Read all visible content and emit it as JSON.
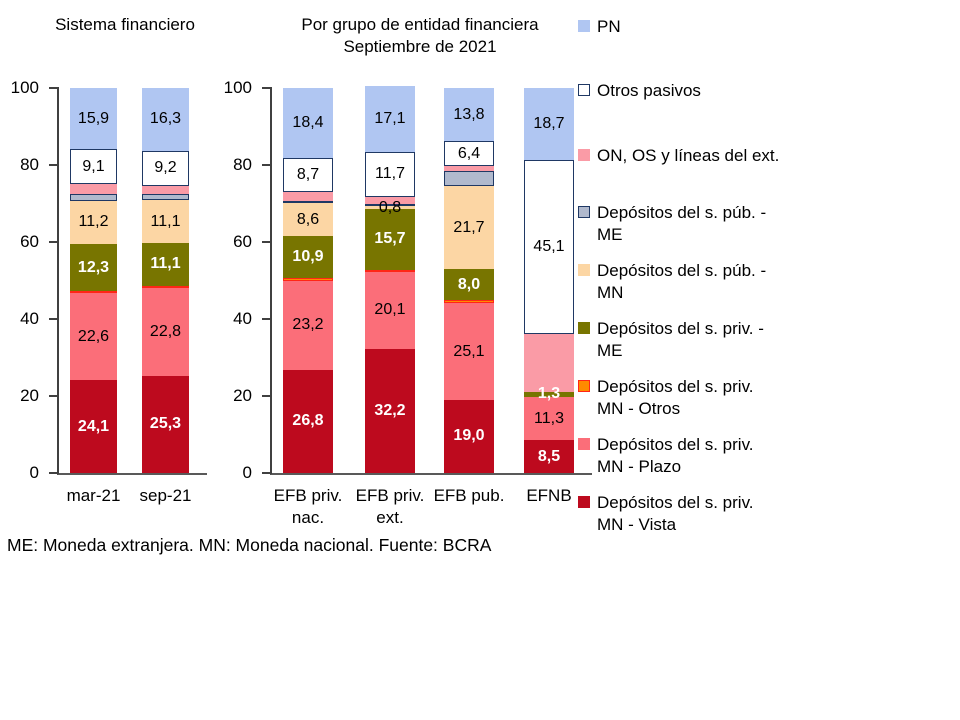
{
  "footer_note": "ME: Moneda extranjera. MN: Moneda nacional. Fuente: BCRA",
  "legend": {
    "items": [
      {
        "key": "pn",
        "lines": [
          "PN"
        ],
        "color": "#B0C6F2",
        "border": ""
      },
      {
        "key": "otros_pasivos",
        "lines": [
          "Otros pasivos"
        ],
        "color": "#FFFFFF",
        "border": "#1F3864"
      },
      {
        "key": "on_os",
        "lines": [
          "ON, OS y líneas del ext."
        ],
        "color": "#FA9BA6",
        "border": ""
      },
      {
        "key": "me_pub",
        "lines": [
          "Depósitos del s. púb. -",
          "ME"
        ],
        "color": "#B0B9CD",
        "border": "#1F3864"
      },
      {
        "key": "mn_pub",
        "lines": [
          "Depósitos del s. púb. -",
          "MN"
        ],
        "color": "#FCD6A4",
        "border": ""
      },
      {
        "key": "me_priv",
        "lines": [
          "Depósitos del s. priv. -",
          "ME"
        ],
        "color": "#787500",
        "border": ""
      },
      {
        "key": "otros",
        "lines": [
          "Depósitos del s. priv.",
          "MN - Otros"
        ],
        "color": "#FF8A00",
        "border": "#FF2616"
      },
      {
        "key": "plazo",
        "lines": [
          "Depósitos del s. priv.",
          "MN - Plazo"
        ],
        "color": "#FB6E79",
        "border": ""
      },
      {
        "key": "vista",
        "lines": [
          "Depósitos del s. priv.",
          "MN - Vista"
        ],
        "color": "#BD0A1E",
        "border": ""
      }
    ]
  },
  "chart_data": [
    {
      "type": "bar",
      "stacked": true,
      "title_lines": [
        "Sistema financiero"
      ],
      "categories": [
        "mar-21",
        "sep-21"
      ],
      "category_label_lines": [
        [
          "mar-21"
        ],
        [
          "sep-21"
        ]
      ],
      "ylim": [
        0,
        100
      ],
      "yticks": [
        0,
        20,
        40,
        60,
        80,
        100
      ],
      "grid": false,
      "legend_position": "right-of-second-chart",
      "series": [
        {
          "key": "vista",
          "name": "Depósitos del s. priv. MN - Vista",
          "color": "#BD0A1E",
          "text_color": "#FFFFFF",
          "bold": true,
          "border": "",
          "values": [
            24.1,
            25.3
          ],
          "labels": [
            "24,1",
            "25,3"
          ]
        },
        {
          "key": "plazo",
          "name": "Depósitos del s. priv. MN - Plazo",
          "color": "#FB6E79",
          "text_color": "#000000",
          "bold": false,
          "border": "",
          "values": [
            22.6,
            22.8
          ],
          "labels": [
            "22,6",
            "22,8"
          ]
        },
        {
          "key": "otros",
          "name": "Depósitos del s. priv. MN - Otros",
          "color": "#FF8A00",
          "text_color": "#000000",
          "bold": false,
          "border": "#FF2616",
          "values": [
            0.5,
            0.5
          ],
          "labels": [
            null,
            null
          ]
        },
        {
          "key": "me_priv",
          "name": "Depósitos del s. priv. - ME",
          "color": "#787500",
          "text_color": "#FFFFFF",
          "bold": true,
          "border": "",
          "values": [
            12.3,
            11.1
          ],
          "labels": [
            "12,3",
            "11,1"
          ]
        },
        {
          "key": "mn_pub",
          "name": "Depósitos del s. púb. - MN",
          "color": "#FCD6A4",
          "text_color": "#000000",
          "bold": false,
          "border": "",
          "values": [
            11.2,
            11.1
          ],
          "labels": [
            "11,2",
            "11,1"
          ]
        },
        {
          "key": "me_pub",
          "name": "Depósitos del s. púb. - ME",
          "color": "#B0B9CD",
          "text_color": "#000000",
          "bold": false,
          "border": "#1F3864",
          "values": [
            1.8,
            1.7
          ],
          "labels": [
            null,
            null
          ]
        },
        {
          "key": "on_os",
          "name": "ON, OS y líneas del ext.",
          "color": "#FA9BA6",
          "text_color": "#000000",
          "bold": false,
          "border": "",
          "values": [
            2.5,
            2.0
          ],
          "labels": [
            null,
            null
          ]
        },
        {
          "key": "otros_pasivos",
          "name": "Otros pasivos",
          "color": "#FFFFFF",
          "text_color": "#000000",
          "bold": false,
          "border": "#1F3864",
          "values": [
            9.1,
            9.2
          ],
          "labels": [
            "9,1",
            "9,2"
          ]
        },
        {
          "key": "pn",
          "name": "PN",
          "color": "#B0C6F2",
          "text_color": "#000000",
          "bold": false,
          "border": "",
          "values": [
            15.9,
            16.3
          ],
          "labels": [
            "15,9",
            "16,3"
          ]
        }
      ]
    },
    {
      "type": "bar",
      "stacked": true,
      "title_lines": [
        "Por grupo de entidad financiera",
        "Septiembre de 2021"
      ],
      "categories": [
        "EFB priv. nac.",
        "EFB priv. ext.",
        "EFB pub.",
        "EFNB"
      ],
      "category_label_lines": [
        [
          "EFB priv.",
          "nac."
        ],
        [
          "EFB priv.",
          "ext."
        ],
        [
          "EFB pub."
        ],
        [
          "EFNB"
        ]
      ],
      "ylim": [
        0,
        100
      ],
      "yticks": [
        0,
        20,
        40,
        60,
        80,
        100
      ],
      "grid": false,
      "series": [
        {
          "key": "vista",
          "name": "Depósitos del s. priv. MN - Vista",
          "color": "#BD0A1E",
          "text_color": "#FFFFFF",
          "bold": true,
          "border": "",
          "values": [
            26.8,
            32.2,
            19.0,
            8.5
          ],
          "labels": [
            "26,8",
            "32,2",
            "19,0",
            "8,5"
          ]
        },
        {
          "key": "plazo",
          "name": "Depósitos del s. priv. MN - Plazo",
          "color": "#FB6E79",
          "text_color": "#000000",
          "bold": false,
          "border": "",
          "values": [
            23.2,
            20.1,
            25.1,
            11.3
          ],
          "labels": [
            "23,2",
            "20,1",
            "25,1",
            "11,3"
          ]
        },
        {
          "key": "otros",
          "name": "Depósitos del s. priv. MN - Otros",
          "color": "#FF8A00",
          "text_color": "#000000",
          "bold": false,
          "border": "#FF2616",
          "values": [
            0.6,
            0.3,
            0.8,
            0
          ],
          "labels": [
            null,
            null,
            null,
            null
          ]
        },
        {
          "key": "me_priv",
          "name": "Depósitos del s. priv. - ME",
          "color": "#787500",
          "text_color": "#FFFFFF",
          "bold": true,
          "border": "",
          "values": [
            10.9,
            15.7,
            8.0,
            1.3
          ],
          "labels": [
            "10,9",
            "15,7",
            "8,0",
            "1,3"
          ]
        },
        {
          "key": "mn_pub",
          "name": "Depósitos del s. púb. - MN",
          "color": "#FCD6A4",
          "text_color": "#000000",
          "bold": false,
          "border": "",
          "values": [
            8.6,
            0.8,
            21.7,
            0
          ],
          "labels": [
            "8,6",
            "0,8",
            "21,7",
            null
          ]
        },
        {
          "key": "me_pub",
          "name": "Depósitos del s. púb. - ME",
          "color": "#B0B9CD",
          "text_color": "#000000",
          "bold": false,
          "border": "#1F3864",
          "values": [
            0.4,
            0.2,
            3.8,
            0
          ],
          "labels": [
            null,
            null,
            null,
            null
          ]
        },
        {
          "key": "on_os",
          "name": "ON, OS y líneas del ext.",
          "color": "#FA9BA6",
          "text_color": "#000000",
          "bold": false,
          "border": "",
          "values": [
            2.4,
            1.9,
            1.4,
            15.1
          ],
          "labels": [
            null,
            null,
            null,
            null
          ]
        },
        {
          "key": "otros_pasivos",
          "name": "Otros pasivos",
          "color": "#FFFFFF",
          "text_color": "#000000",
          "bold": false,
          "border": "#1F3864",
          "values": [
            8.7,
            11.7,
            6.4,
            45.1
          ],
          "labels": [
            "8,7",
            "11,7",
            "6,4",
            "45,1"
          ]
        },
        {
          "key": "pn",
          "name": "PN",
          "color": "#B0C6F2",
          "text_color": "#000000",
          "bold": false,
          "border": "",
          "values": [
            18.4,
            17.1,
            13.8,
            18.7
          ],
          "labels": [
            "18,4",
            "17,1",
            "13,8",
            "18,7"
          ]
        }
      ]
    }
  ]
}
